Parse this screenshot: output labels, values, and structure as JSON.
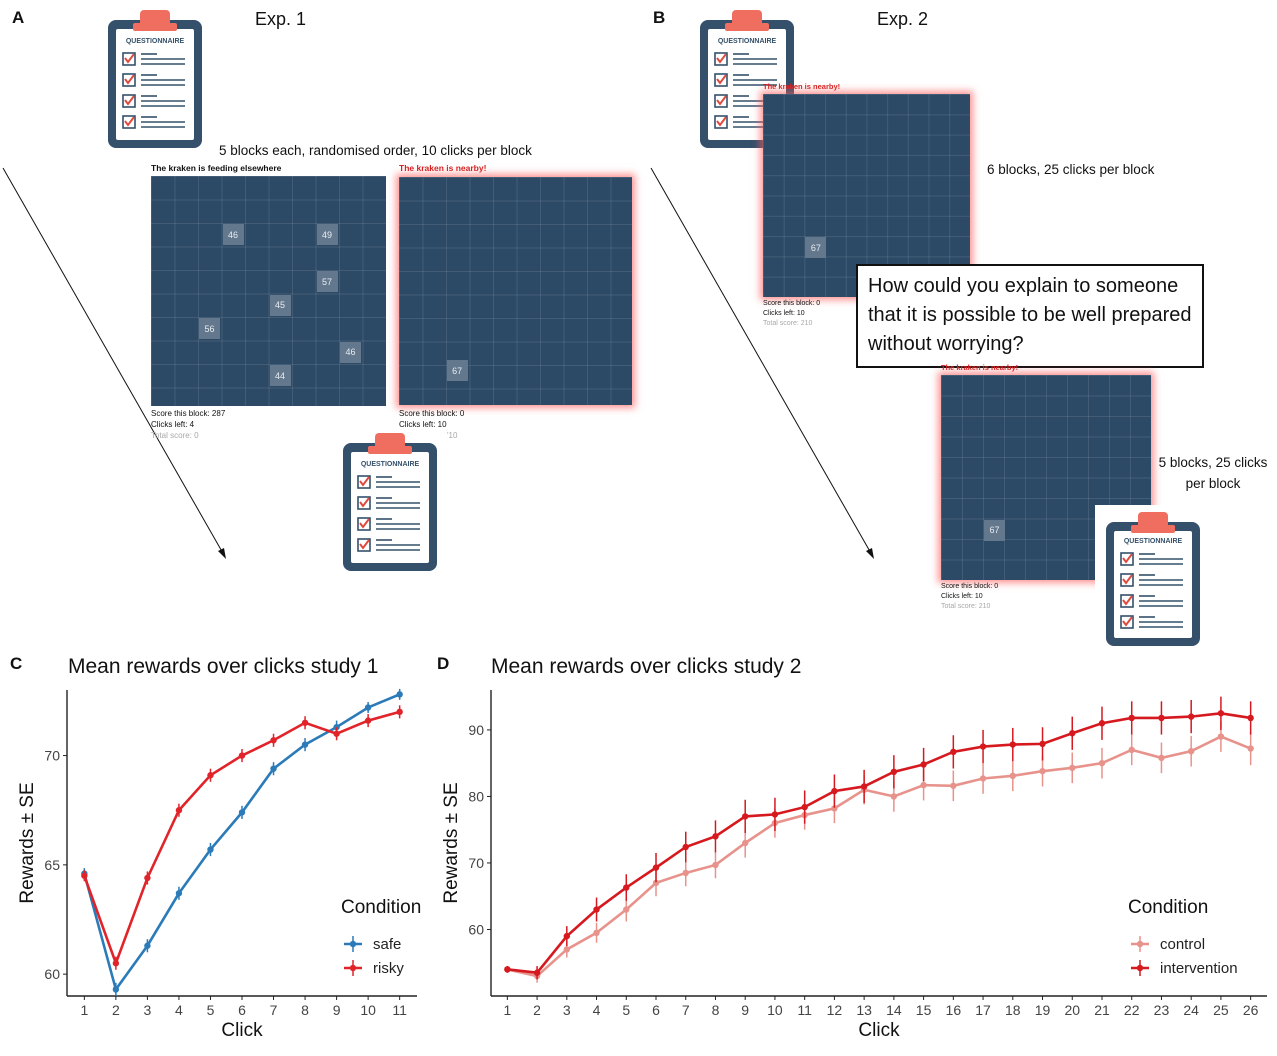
{
  "panels": {
    "A": {
      "letter": "A",
      "title": "Exp. 1",
      "note": "5 blocks each, randomised order, 10 clicks per block",
      "questionnaire_label": "QUESTIONNAIRE",
      "game_safe": {
        "title": "The kraken is feeding elsewhere",
        "cells": [
          {
            "value": "46",
            "col": 3,
            "row": 2
          },
          {
            "value": "49",
            "col": 7,
            "row": 2
          },
          {
            "value": "57",
            "col": 7,
            "row": 4
          },
          {
            "value": "45",
            "col": 5,
            "row": 5
          },
          {
            "value": "56",
            "col": 2,
            "row": 6
          },
          {
            "value": "46",
            "col": 8,
            "row": 7
          },
          {
            "value": "44",
            "col": 5,
            "row": 8
          }
        ],
        "stats": [
          "Score this block: 287",
          "Clicks left: 4",
          "Total score: 0"
        ]
      },
      "game_risky": {
        "title": "The kraken is nearby!",
        "cells": [
          {
            "value": "67",
            "col": 2,
            "row": 8
          }
        ],
        "stats": [
          "Score this block: 0",
          "Clicks left: 10",
          "'10"
        ]
      }
    },
    "B": {
      "letter": "B",
      "title": "Exp. 2",
      "note1": "6 blocks, 25 clicks per block",
      "note2_line1": "5 blocks, 25 clicks",
      "note2_line2": "per block",
      "question": "How could you explain to someone that it is possible to be well prepared without worrying?",
      "questionnaire_label": "QUESTIONNAIRE",
      "game1": {
        "title": "The kraken is nearby!",
        "cells": [
          {
            "value": "67",
            "col": 2,
            "row": 7
          }
        ],
        "stats": [
          "Score this block: 0",
          "Clicks left: 10",
          "Total score: 210"
        ]
      },
      "game2": {
        "title": "The kraken is nearby!",
        "cells": [
          {
            "value": "67",
            "col": 2,
            "row": 7
          }
        ],
        "stats": [
          "Score this block: 0",
          "Clicks left: 10",
          "Total score: 210"
        ]
      }
    },
    "C": {
      "letter": "C"
    },
    "D": {
      "letter": "D"
    }
  },
  "chart_data": [
    {
      "type": "line",
      "title": "Mean rewards over clicks study 1",
      "xlabel": "Click",
      "ylabel": "Rewards ± SE",
      "x": [
        1,
        2,
        3,
        4,
        5,
        6,
        7,
        8,
        9,
        10,
        11
      ],
      "ylim": [
        59,
        73
      ],
      "yticks": [
        60,
        65,
        70
      ],
      "legend_title": "Condition",
      "legend_position": "right",
      "series": [
        {
          "name": "safe",
          "color": "#2b7bb9",
          "values": [
            64.6,
            59.3,
            61.3,
            63.7,
            65.7,
            67.4,
            69.4,
            70.5,
            71.3,
            72.2,
            72.8
          ],
          "se": [
            0.25,
            0.3,
            0.3,
            0.3,
            0.3,
            0.3,
            0.3,
            0.3,
            0.3,
            0.25,
            0.25
          ]
        },
        {
          "name": "risky",
          "color": "#e0242a",
          "values": [
            64.5,
            60.5,
            64.4,
            67.5,
            69.1,
            70.0,
            70.7,
            71.5,
            71.0,
            71.6,
            72.0
          ],
          "se": [
            0.25,
            0.3,
            0.3,
            0.3,
            0.3,
            0.3,
            0.3,
            0.3,
            0.3,
            0.3,
            0.3
          ]
        }
      ]
    },
    {
      "type": "line",
      "title": "Mean rewards over clicks study 2",
      "xlabel": "Click",
      "ylabel": "Rewards ± SE",
      "x": [
        1,
        2,
        3,
        4,
        5,
        6,
        7,
        8,
        9,
        10,
        11,
        12,
        13,
        14,
        15,
        16,
        17,
        18,
        19,
        20,
        21,
        22,
        23,
        24,
        25,
        26
      ],
      "ylim": [
        50,
        96
      ],
      "yticks": [
        60,
        70,
        80,
        90
      ],
      "legend_title": "Condition",
      "legend_position": "right",
      "series": [
        {
          "name": "control",
          "color": "#e8928c",
          "values": [
            54,
            53,
            57,
            59.5,
            63,
            67,
            68.5,
            69.7,
            73,
            76,
            77.2,
            78.2,
            81,
            80,
            81.7,
            81.6,
            82.7,
            83.1,
            83.8,
            84.3,
            85,
            87,
            85.8,
            86.8,
            89,
            87.2
          ],
          "se": [
            0.5,
            1,
            1.2,
            1.5,
            1.8,
            2,
            2,
            2,
            2.2,
            2.2,
            2.2,
            2.2,
            2.2,
            2.3,
            2.3,
            2.3,
            2.3,
            2.3,
            2.3,
            2.3,
            2.3,
            2.3,
            2.3,
            2.3,
            2.3,
            2.5
          ]
        },
        {
          "name": "intervention",
          "color": "#d6191f",
          "values": [
            54,
            53.5,
            59,
            63,
            66.3,
            69.3,
            72.4,
            74,
            77,
            77.3,
            78.4,
            80.8,
            81.5,
            83.7,
            84.8,
            86.7,
            87.5,
            87.8,
            87.9,
            89.5,
            91,
            91.8,
            91.8,
            92,
            92.5,
            91.8
          ],
          "se": [
            0.5,
            1,
            1.5,
            1.8,
            2,
            2.2,
            2.3,
            2.4,
            2.5,
            2.5,
            2.5,
            2.5,
            2.5,
            2.5,
            2.5,
            2.5,
            2.5,
            2.5,
            2.5,
            2.5,
            2.5,
            2.5,
            2.5,
            2.5,
            2.5,
            2.5
          ]
        }
      ]
    }
  ]
}
